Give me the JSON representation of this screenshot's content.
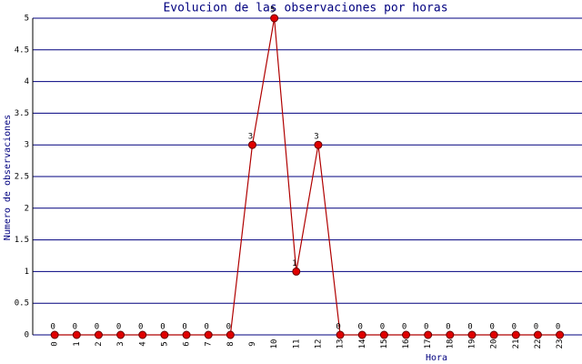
{
  "chart_data": {
    "type": "line",
    "title": "Evolucion de las observaciones por horas",
    "x_label": "Hora",
    "y_label": "Numero de observaciones",
    "categories": [
      "0",
      "1",
      "2",
      "3",
      "4",
      "5",
      "6",
      "7",
      "8",
      "9",
      "10",
      "11",
      "12",
      "13",
      "14",
      "15",
      "16",
      "17",
      "18",
      "19",
      "20",
      "21",
      "22",
      "23"
    ],
    "values": [
      0,
      0,
      0,
      0,
      0,
      0,
      0,
      0,
      0,
      3,
      5,
      1,
      3,
      0,
      0,
      0,
      0,
      0,
      0,
      0,
      0,
      0,
      0,
      0
    ],
    "color": "#b00000",
    "marker_color": "#e00000",
    "ylim": [
      0,
      5
    ],
    "yticks": [
      0,
      0.5,
      1,
      1.5,
      2,
      2.5,
      3,
      3.5,
      4,
      4.5,
      5
    ],
    "grid": true
  }
}
